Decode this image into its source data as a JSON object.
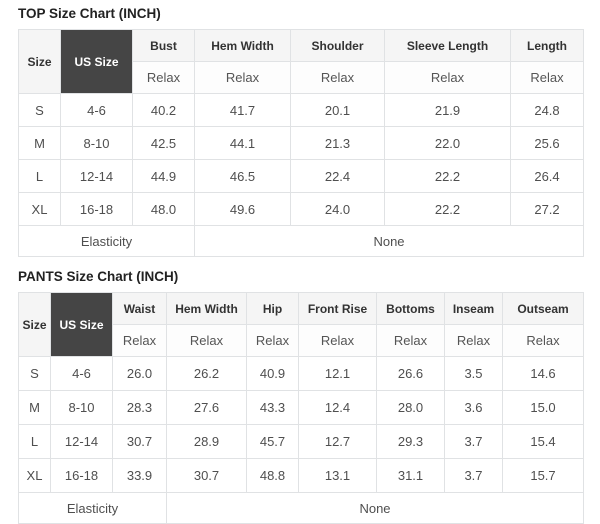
{
  "top_chart": {
    "title": "TOP Size Chart (INCH)",
    "corner_label": "Size",
    "us_size_label": "US Size",
    "fit_label": "Relax",
    "columns": [
      "Bust",
      "Hem Width",
      "Shoulder",
      "Sleeve Length",
      "Length"
    ],
    "rows": [
      {
        "size": "S",
        "us_size": "4-6",
        "values": [
          "40.2",
          "41.7",
          "20.1",
          "21.9",
          "24.8"
        ]
      },
      {
        "size": "M",
        "us_size": "8-10",
        "values": [
          "42.5",
          "44.1",
          "21.3",
          "22.0",
          "25.6"
        ]
      },
      {
        "size": "L",
        "us_size": "12-14",
        "values": [
          "44.9",
          "46.5",
          "22.4",
          "22.2",
          "26.4"
        ]
      },
      {
        "size": "XL",
        "us_size": "16-18",
        "values": [
          "48.0",
          "49.6",
          "24.0",
          "22.2",
          "27.2"
        ]
      }
    ],
    "elasticity_label": "Elasticity",
    "elasticity_value": "None"
  },
  "pants_chart": {
    "title": "PANTS Size Chart (INCH)",
    "corner_label": "Size",
    "us_size_label": "US Size",
    "fit_label": "Relax",
    "columns": [
      "Waist",
      "Hem Width",
      "Hip",
      "Front Rise",
      "Bottoms",
      "Inseam",
      "Outseam"
    ],
    "rows": [
      {
        "size": "S",
        "us_size": "4-6",
        "values": [
          "26.0",
          "26.2",
          "40.9",
          "12.1",
          "26.6",
          "3.5",
          "14.6"
        ]
      },
      {
        "size": "M",
        "us_size": "8-10",
        "values": [
          "28.3",
          "27.6",
          "43.3",
          "12.4",
          "28.0",
          "3.6",
          "15.0"
        ]
      },
      {
        "size": "L",
        "us_size": "12-14",
        "values": [
          "30.7",
          "28.9",
          "45.7",
          "12.7",
          "29.3",
          "3.7",
          "15.4"
        ]
      },
      {
        "size": "XL",
        "us_size": "16-18",
        "values": [
          "33.9",
          "30.7",
          "48.8",
          "13.1",
          "31.1",
          "3.7",
          "15.7"
        ]
      }
    ],
    "elasticity_label": "Elasticity",
    "elasticity_value": "None"
  },
  "colors": {
    "header_bg": "#f5f5f5",
    "us_size_bg": "#454545",
    "us_size_text": "#ffffff",
    "border": "#e0e2e4",
    "value_text": "#4f4f4f",
    "title_text": "#222222"
  }
}
